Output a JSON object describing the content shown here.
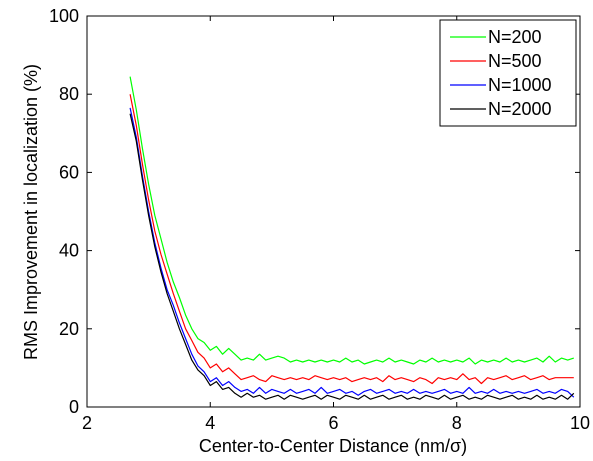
{
  "chart_data": {
    "type": "line",
    "title": "",
    "xlabel": "Center-to-Center Distance (nm/σ)",
    "ylabel": "RMS Improvement in localization (%)",
    "xlim": [
      2,
      10
    ],
    "ylim": [
      0,
      100
    ],
    "xticks": [
      2,
      4,
      6,
      8,
      10
    ],
    "yticks": [
      0,
      20,
      40,
      60,
      80,
      100
    ],
    "grid": false,
    "legend_position": "top-right",
    "x": [
      2.7,
      2.8,
      2.9,
      3.0,
      3.1,
      3.2,
      3.3,
      3.4,
      3.5,
      3.6,
      3.7,
      3.8,
      3.9,
      4.0,
      4.1,
      4.2,
      4.3,
      4.4,
      4.5,
      4.6,
      4.7,
      4.8,
      4.9,
      5.0,
      5.1,
      5.2,
      5.3,
      5.4,
      5.5,
      5.6,
      5.7,
      5.8,
      5.9,
      6.0,
      6.1,
      6.2,
      6.3,
      6.4,
      6.5,
      6.6,
      6.7,
      6.8,
      6.9,
      7.0,
      7.1,
      7.2,
      7.3,
      7.4,
      7.5,
      7.6,
      7.7,
      7.8,
      7.9,
      8.0,
      8.1,
      8.2,
      8.3,
      8.4,
      8.5,
      8.6,
      8.7,
      8.8,
      8.9,
      9.0,
      9.1,
      9.2,
      9.3,
      9.4,
      9.5,
      9.6,
      9.7,
      9.8,
      9.9
    ],
    "series": [
      {
        "name": "N=200",
        "color": "#00ff00",
        "values": [
          84.5,
          76,
          66,
          57,
          49,
          43,
          37,
          32,
          28,
          23.5,
          20,
          17.5,
          16.5,
          14.5,
          15.5,
          13.5,
          15,
          13.5,
          12,
          12.5,
          12,
          13.5,
          12,
          12.5,
          13,
          12.5,
          11.5,
          12,
          11.5,
          12,
          11.5,
          12,
          11.5,
          12,
          11.5,
          12.5,
          11.5,
          12,
          11,
          11.5,
          12,
          11.5,
          12.5,
          11.5,
          12,
          11.5,
          11,
          12,
          11.5,
          12.5,
          11.5,
          12,
          11.5,
          12,
          11.5,
          12.5,
          11,
          12,
          11.5,
          12,
          11.5,
          12.5,
          11.5,
          12,
          11.5,
          12,
          12.5,
          11.5,
          13,
          11.5,
          12.5,
          12,
          12.5
        ]
      },
      {
        "name": "N=500",
        "color": "#ff0000",
        "values": [
          80,
          72,
          62,
          53,
          45,
          39,
          34,
          29,
          24.5,
          20,
          17,
          14,
          12.5,
          10,
          11,
          9,
          10,
          8.5,
          7,
          7.5,
          8,
          7,
          6.5,
          8,
          7.5,
          7,
          7.5,
          7,
          7.5,
          7,
          8,
          7.5,
          7,
          7.5,
          7,
          7.5,
          6.5,
          7,
          7.5,
          7,
          7.5,
          6.5,
          8,
          7,
          7.5,
          7,
          6.5,
          7.5,
          7,
          6,
          7.5,
          7,
          7.5,
          7,
          8.5,
          7,
          7.5,
          6,
          7.5,
          7,
          7.5,
          8,
          7,
          7.5,
          8,
          7,
          7.5,
          8,
          7,
          7.5,
          7.5,
          7.5,
          7.5
        ]
      },
      {
        "name": "N=1000",
        "color": "#0000ff",
        "values": [
          76.5,
          69,
          59,
          50,
          42,
          35.5,
          30,
          26,
          21.5,
          17.5,
          13.5,
          10.5,
          9,
          6.5,
          7.5,
          5.5,
          6.5,
          5,
          4,
          4.5,
          3.5,
          5,
          3.5,
          4.5,
          4,
          3.5,
          4.5,
          3.5,
          4,
          4.5,
          3.5,
          5,
          3.5,
          4,
          4.5,
          3.5,
          4,
          3,
          4,
          4.5,
          3.5,
          4,
          4.5,
          3.5,
          4,
          3.5,
          4.5,
          3.5,
          4,
          3.5,
          4,
          4.5,
          3.5,
          4,
          3.5,
          5,
          3.5,
          4,
          3.5,
          4.5,
          3.5,
          4,
          3.5,
          4,
          3.5,
          4,
          4.5,
          3.5,
          4,
          3.5,
          4.5,
          4,
          2.5
        ]
      },
      {
        "name": "N=2000",
        "color": "#000000",
        "values": [
          75,
          68,
          58,
          49,
          41,
          34.5,
          29,
          24.5,
          20,
          16,
          12,
          9.5,
          8,
          5.5,
          6.5,
          4.5,
          5,
          3.5,
          2.5,
          3.5,
          2.5,
          3,
          2,
          2.5,
          3,
          2,
          3,
          2.5,
          2,
          2.5,
          3,
          2,
          3,
          2.5,
          2,
          3,
          2.5,
          2,
          3,
          2,
          2.5,
          3,
          2,
          2.5,
          3,
          2,
          2.5,
          2,
          3,
          2.5,
          2,
          3,
          2,
          2.5,
          3,
          2,
          2.5,
          2,
          3,
          2.5,
          2,
          2.5,
          3,
          2,
          2.5,
          2,
          3,
          2,
          2.5,
          2,
          3,
          2,
          3.5
        ]
      }
    ]
  }
}
